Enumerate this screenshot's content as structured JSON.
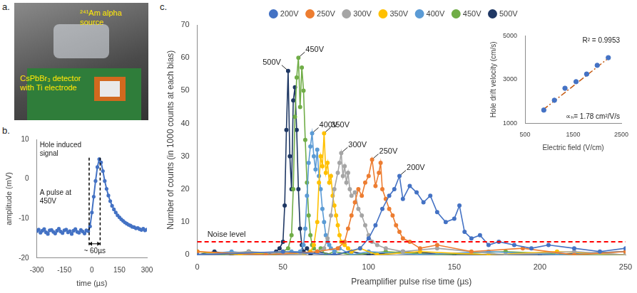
{
  "photo": {
    "panel_label": "a.",
    "labels": [
      "²⁴¹Am alpha source",
      "CsPbBr₃ detector with Ti electrode"
    ]
  },
  "chart_data": [
    {
      "type": "line",
      "panel_label": "b.",
      "x_label": "time (µs)",
      "y_label": "amplitude (mV)",
      "x": [
        -300,
        -290,
        -280,
        -270,
        -260,
        -250,
        -240,
        -230,
        -220,
        -210,
        -200,
        -190,
        -180,
        -170,
        -160,
        -150,
        -140,
        -130,
        -120,
        -110,
        -100,
        -90,
        -80,
        -70,
        -60,
        -50,
        -40,
        -30,
        -20,
        -10,
        0,
        10,
        20,
        30,
        40,
        50,
        60,
        70,
        80,
        90,
        100,
        110,
        120,
        130,
        140,
        150,
        160,
        170,
        180,
        190,
        200,
        210,
        220,
        230,
        240,
        250,
        260,
        270,
        280,
        290,
        300
      ],
      "values": [
        -13.2,
        -12.8,
        -13.6,
        -13.1,
        -12.7,
        -13.5,
        -13.9,
        -13.0,
        -12.9,
        -13.4,
        -13.8,
        -13.1,
        -12.6,
        -13.3,
        -13.7,
        -13.0,
        -12.8,
        -13.5,
        -13.2,
        -13.9,
        -13.1,
        -12.7,
        -13.4,
        -13.6,
        -12.9,
        -13.3,
        -13.8,
        -13.0,
        -13.2,
        -12.0,
        -8.5,
        -4.5,
        -0.5,
        3.0,
        5.0,
        4.2,
        2.0,
        -0.5,
        -2.5,
        -4.2,
        -5.6,
        -6.8,
        -7.7,
        -8.5,
        -9.2,
        -9.7,
        -10.2,
        -10.6,
        -11.0,
        -11.3,
        -11.6,
        -11.8,
        -12.1,
        -12.2,
        -12.5,
        -12.4,
        -12.7,
        -12.9,
        -12.6,
        -13.0,
        -12.8
      ],
      "color": "#4472c4",
      "marker": "circle",
      "xlim": [
        -300,
        300
      ],
      "xticks": [
        -300,
        -150,
        0,
        150,
        300
      ],
      "ylim": [
        -20,
        10
      ],
      "yticks": [
        -20,
        -10,
        0,
        10
      ],
      "grid": false,
      "annotations": [
        "Hole induced signal",
        "A pulse at 450V"
      ],
      "rise_time": {
        "x": [
          -15,
          45
        ],
        "label": "~ 60µs"
      }
    },
    {
      "type": "line",
      "panel_label": "c.",
      "x_label": "Preamplifier pulse rise time (µs)",
      "y_label": "Number of counts (in 1000 counts at each bias)",
      "series": [
        {
          "name": "200V",
          "color": "#4472c4",
          "marker": "circle",
          "line_style": "solid",
          "x": [
            0,
            50,
            80,
            95,
            100,
            104,
            108,
            112,
            115,
            118,
            120,
            124,
            128,
            132,
            136,
            140,
            145,
            150,
            153,
            156,
            160,
            165,
            170,
            176,
            185,
            195,
            205,
            220,
            235,
            250
          ],
          "values": [
            0,
            1,
            0,
            2,
            5,
            9,
            14,
            18,
            20,
            24,
            17,
            21,
            19,
            16,
            18,
            13,
            10,
            11,
            15,
            7,
            5,
            6,
            3,
            4,
            3,
            2,
            3,
            2,
            1,
            2
          ]
        },
        {
          "name": "250V",
          "color": "#ed7d31",
          "marker": "circle",
          "line_style": "solid",
          "x": [
            0,
            40,
            70,
            82,
            86,
            88,
            90,
            92,
            94,
            96,
            98,
            100,
            102,
            104,
            106,
            107,
            108,
            110,
            112,
            114,
            116,
            118,
            120,
            124,
            130,
            140,
            160,
            190,
            220,
            250
          ],
          "values": [
            1,
            0,
            1,
            2,
            4,
            8,
            12,
            16,
            20,
            18,
            22,
            24,
            29,
            21,
            25,
            28,
            20,
            17,
            14,
            12,
            9,
            7,
            5,
            4,
            2,
            3,
            1,
            2,
            0,
            1
          ]
        },
        {
          "name": "300V",
          "color": "#a5a5a5",
          "marker": "circle",
          "line_style": "solid",
          "x": [
            0,
            30,
            60,
            70,
            74,
            76,
            78,
            80,
            82,
            83,
            84,
            85,
            86,
            87,
            88,
            89,
            90,
            92,
            94,
            96,
            98,
            100,
            102,
            105,
            110,
            120,
            140,
            180,
            220,
            250
          ],
          "values": [
            0,
            1,
            0,
            1,
            2,
            5,
            12,
            20,
            25,
            28,
            31,
            24,
            27,
            22,
            25,
            20,
            18,
            19,
            14,
            12,
            9,
            6,
            4,
            3,
            2,
            1,
            2,
            0,
            1,
            0
          ]
        },
        {
          "name": "350V",
          "color": "#ffc000",
          "marker": "circle",
          "line_style": "solid",
          "x": [
            0,
            25,
            50,
            62,
            66,
            68,
            70,
            71,
            72,
            73,
            74,
            75,
            76,
            77,
            78,
            79,
            80,
            81,
            82,
            83,
            84,
            86,
            88,
            90,
            95,
            105,
            130,
            170,
            210,
            250
          ],
          "values": [
            1,
            0,
            1,
            0,
            1,
            3,
            10,
            22,
            30,
            27,
            37,
            25,
            28,
            22,
            24,
            18,
            15,
            12,
            9,
            6,
            4,
            3,
            2,
            1,
            2,
            0,
            1,
            0,
            1,
            0
          ]
        },
        {
          "name": "400V",
          "color": "#5b9bd5",
          "marker": "circle",
          "line_style": "solid",
          "x": [
            0,
            20,
            40,
            55,
            60,
            62,
            63,
            64,
            65,
            66,
            67,
            68,
            69,
            70,
            71,
            72,
            73,
            74,
            75,
            76,
            77,
            78,
            80,
            83,
            90,
            100,
            130,
            170,
            210,
            250
          ],
          "values": [
            0,
            1,
            0,
            1,
            1,
            3,
            8,
            18,
            28,
            33,
            37,
            30,
            26,
            32,
            24,
            20,
            14,
            10,
            6,
            4,
            3,
            2,
            1,
            2,
            0,
            1,
            0,
            1,
            0,
            1
          ]
        },
        {
          "name": "450V",
          "color": "#70ad47",
          "marker": "circle",
          "line_style": "solid",
          "x": [
            0,
            15,
            30,
            45,
            50,
            53,
            55,
            56,
            57,
            58,
            59,
            60,
            61,
            62,
            63,
            64,
            65,
            66,
            67,
            68,
            70,
            72,
            75,
            80,
            90,
            110,
            140,
            180,
            220,
            250
          ],
          "values": [
            1,
            0,
            1,
            0,
            1,
            2,
            6,
            20,
            42,
            54,
            60,
            45,
            57,
            50,
            35,
            22,
            12,
            6,
            3,
            2,
            1,
            2,
            0,
            1,
            0,
            1,
            0,
            1,
            0,
            0
          ]
        },
        {
          "name": "500V",
          "color": "#1f3864",
          "marker": "circle",
          "line_style": "solid",
          "x": [
            0,
            10,
            20,
            30,
            40,
            46,
            48,
            50,
            51,
            52,
            53,
            54,
            55,
            56,
            57,
            58,
            59,
            60,
            61,
            62,
            64,
            66,
            70,
            80,
            90,
            100,
            120,
            150,
            200,
            250
          ],
          "values": [
            0,
            1,
            0,
            1,
            0,
            1,
            2,
            4,
            15,
            38,
            56,
            30,
            20,
            47,
            51,
            38,
            20,
            8,
            3,
            1,
            2,
            0,
            1,
            0,
            1,
            0,
            1,
            0,
            0,
            1
          ]
        }
      ],
      "xlim": [
        0,
        250
      ],
      "xticks": [
        0,
        50,
        100,
        150,
        200,
        250
      ],
      "ylim": [
        0,
        70
      ],
      "yticks": [
        0,
        10,
        20,
        30,
        40,
        50,
        60,
        70
      ],
      "grid": false,
      "legend": "top",
      "reference_lines": [
        {
          "label": "Noise level",
          "y": 4,
          "color": "#ff0000",
          "line_style": "dashed"
        }
      ]
    },
    {
      "type": "scatter",
      "x_label": "Electric field (V/cm)",
      "y_label": "Hole drift velocity (cm/s)",
      "x": [
        890,
        1110,
        1330,
        1560,
        1780,
        2000,
        2230
      ],
      "values": [
        1600,
        2050,
        2600,
        2900,
        3250,
        3650,
        4000
      ],
      "color": "#4472c4",
      "marker": "circle",
      "trendline": {
        "x": [
          880,
          2250
        ],
        "y": [
          1620,
          4010
        ],
        "color": "#c55a11",
        "line_style": "dashdot"
      },
      "xlim": [
        500,
        2500
      ],
      "xticks": [
        500,
        1500,
        2500
      ],
      "ylim": [
        1000,
        5000
      ],
      "yticks": [
        1000,
        3000,
        5000
      ],
      "grid": false,
      "annotations": [
        "R² = 0.9953",
        "∝ₕ= 1.78 cm²/V/s"
      ]
    }
  ]
}
